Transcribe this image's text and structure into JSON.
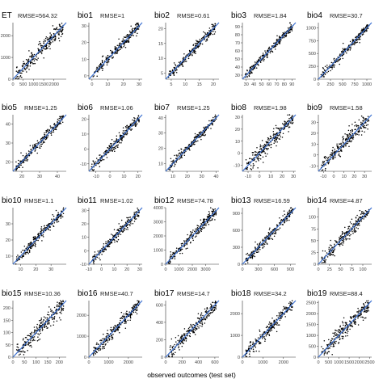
{
  "chart_data": {
    "type": "scatter",
    "xlabel": "observed outcomes (test set)",
    "ylabel": "",
    "grid": false,
    "panels": [
      {
        "name": "ET",
        "rmse": "RMSE=564.32",
        "xlim": [
          0,
          2600
        ],
        "ylim": [
          0,
          2600
        ],
        "xticks": [
          "0",
          "500",
          "1000",
          "1500",
          "2000"
        ],
        "yticks": [
          "0",
          "1000",
          "2000"
        ],
        "xtick_vals": [
          0,
          500,
          1000,
          1500,
          2000
        ],
        "ytick_vals": [
          0,
          1000,
          2000
        ],
        "spread": 0.07
      },
      {
        "name": "bio1",
        "rmse": "RMSE=1",
        "xlim": [
          -2,
          32
        ],
        "ylim": [
          -2,
          32
        ],
        "xticks": [
          "0",
          "10",
          "20",
          "30"
        ],
        "yticks": [
          "0",
          "10",
          "20",
          "30"
        ],
        "xtick_vals": [
          0,
          10,
          20,
          30
        ],
        "ytick_vals": [
          0,
          10,
          20,
          30
        ],
        "spread": 0.05
      },
      {
        "name": "bio2",
        "rmse": "RMSE=0.61",
        "xlim": [
          3,
          22
        ],
        "ylim": [
          3,
          22
        ],
        "xticks": [
          "5",
          "10",
          "15",
          "20"
        ],
        "yticks": [
          "5",
          "10",
          "15",
          "20"
        ],
        "xtick_vals": [
          5,
          10,
          15,
          20
        ],
        "ytick_vals": [
          5,
          10,
          15,
          20
        ],
        "spread": 0.05
      },
      {
        "name": "bio3",
        "rmse": "RMSE=1.84",
        "xlim": [
          25,
          95
        ],
        "ylim": [
          25,
          95
        ],
        "xticks": [
          "30",
          "40",
          "50",
          "60",
          "70",
          "80",
          "90"
        ],
        "yticks": [
          "30",
          "40",
          "50",
          "60",
          "70",
          "80",
          "90"
        ],
        "xtick_vals": [
          30,
          40,
          50,
          60,
          70,
          80,
          90
        ],
        "ytick_vals": [
          30,
          40,
          50,
          60,
          70,
          80,
          90
        ],
        "spread": 0.04
      },
      {
        "name": "bio4",
        "rmse": "RMSE=30.7",
        "xlim": [
          0,
          1100
        ],
        "ylim": [
          0,
          1100
        ],
        "xticks": [
          "0",
          "250",
          "500",
          "750",
          "1000"
        ],
        "yticks": [
          "0",
          "250",
          "500",
          "750",
          "1000"
        ],
        "xtick_vals": [
          0,
          250,
          500,
          750,
          1000
        ],
        "ytick_vals": [
          0,
          250,
          500,
          750,
          1000
        ],
        "spread": 0.04
      },
      {
        "name": "bio5",
        "rmse": "RMSE=1.25",
        "xlim": [
          15,
          45
        ],
        "ylim": [
          15,
          45
        ],
        "xticks": [
          "20",
          "30",
          "40"
        ],
        "yticks": [
          "20",
          "30",
          "40"
        ],
        "xtick_vals": [
          20,
          30,
          40
        ],
        "ytick_vals": [
          20,
          30,
          40
        ],
        "spread": 0.05
      },
      {
        "name": "bio6",
        "rmse": "RMSE=1.06",
        "xlim": [
          -15,
          23
        ],
        "ylim": [
          -15,
          23
        ],
        "xticks": [
          "-10",
          "0",
          "10",
          "20"
        ],
        "yticks": [
          "-10",
          "0",
          "10",
          "20"
        ],
        "xtick_vals": [
          -10,
          0,
          10,
          20
        ],
        "ytick_vals": [
          -10,
          0,
          10,
          20
        ],
        "spread": 0.05
      },
      {
        "name": "bio7",
        "rmse": "RMSE=1.25",
        "xlim": [
          5,
          42
        ],
        "ylim": [
          5,
          42
        ],
        "xticks": [
          "10",
          "20",
          "30",
          "40"
        ],
        "yticks": [
          "10",
          "20",
          "30",
          "40"
        ],
        "xtick_vals": [
          10,
          20,
          30,
          40
        ],
        "ytick_vals": [
          10,
          20,
          30,
          40
        ],
        "spread": 0.04
      },
      {
        "name": "bio8",
        "rmse": "RMSE=1.98",
        "xlim": [
          -15,
          32
        ],
        "ylim": [
          -15,
          32
        ],
        "xticks": [
          "-10",
          "0",
          "10",
          "20",
          "30"
        ],
        "yticks": [
          "-10",
          "0",
          "10",
          "20",
          "30"
        ],
        "xtick_vals": [
          -10,
          0,
          10,
          20,
          30
        ],
        "ytick_vals": [
          -10,
          0,
          10,
          20,
          30
        ],
        "spread": 0.07
      },
      {
        "name": "bio9",
        "rmse": "RMSE=1.58",
        "xlim": [
          -15,
          37
        ],
        "ylim": [
          -15,
          37
        ],
        "xticks": [
          "-10",
          "0",
          "10",
          "20",
          "30"
        ],
        "yticks": [
          "-10",
          "0",
          "10",
          "20",
          "30"
        ],
        "xtick_vals": [
          -10,
          0,
          10,
          20,
          30
        ],
        "ytick_vals": [
          -10,
          0,
          10,
          20,
          30
        ],
        "spread": 0.08
      },
      {
        "name": "bio10",
        "rmse": "RMSE=1.1",
        "xlim": [
          5,
          40
        ],
        "ylim": [
          5,
          40
        ],
        "xticks": [
          "10",
          "20",
          "30"
        ],
        "yticks": [
          "10",
          "20",
          "30"
        ],
        "xtick_vals": [
          10,
          20,
          30
        ],
        "ytick_vals": [
          10,
          20,
          30
        ],
        "spread": 0.05
      },
      {
        "name": "bio11",
        "rmse": "RMSE=1.02",
        "xlim": [
          -10,
          32
        ],
        "ylim": [
          -10,
          32
        ],
        "xticks": [
          "-10",
          "0",
          "10",
          "20",
          "30"
        ],
        "yticks": [
          "-10",
          "0",
          "10",
          "20",
          "30"
        ],
        "xtick_vals": [
          -10,
          0,
          10,
          20,
          30
        ],
        "ytick_vals": [
          -10,
          0,
          10,
          20,
          30
        ],
        "spread": 0.05
      },
      {
        "name": "bio12",
        "rmse": "RMSE=74.78",
        "xlim": [
          0,
          4000
        ],
        "ylim": [
          0,
          4000
        ],
        "xticks": [
          "0",
          "1000",
          "2000",
          "3000"
        ],
        "yticks": [
          "0",
          "1000",
          "2000",
          "3000",
          "4000"
        ],
        "xtick_vals": [
          0,
          1000,
          2000,
          3000
        ],
        "ytick_vals": [
          0,
          1000,
          2000,
          3000,
          4000
        ],
        "spread": 0.05
      },
      {
        "name": "bio13",
        "rmse": "RMSE=16.59",
        "xlim": [
          0,
          1000
        ],
        "ylim": [
          0,
          1000
        ],
        "xticks": [
          "0",
          "300",
          "600",
          "900"
        ],
        "yticks": [
          "0",
          "300",
          "600",
          "900"
        ],
        "xtick_vals": [
          0,
          300,
          600,
          900
        ],
        "ytick_vals": [
          0,
          300,
          600,
          900
        ],
        "spread": 0.05
      },
      {
        "name": "bio14",
        "rmse": "RMSE=4.87",
        "xlim": [
          0,
          120
        ],
        "ylim": [
          0,
          120
        ],
        "xticks": [
          "0",
          "25",
          "50",
          "75",
          "100"
        ],
        "yticks": [
          "0",
          "25",
          "50",
          "75",
          "100"
        ],
        "xtick_vals": [
          0,
          25,
          50,
          75,
          100
        ],
        "ytick_vals": [
          0,
          25,
          50,
          75,
          100
        ],
        "spread": 0.06
      },
      {
        "name": "bio15",
        "rmse": "RMSE=10.36",
        "xlim": [
          0,
          230
        ],
        "ylim": [
          0,
          230
        ],
        "xticks": [
          "0",
          "50",
          "100",
          "150",
          "200"
        ],
        "yticks": [
          "0",
          "50",
          "100",
          "150",
          "200"
        ],
        "xtick_vals": [
          0,
          50,
          100,
          150,
          200
        ],
        "ytick_vals": [
          0,
          50,
          100,
          150,
          200
        ],
        "spread": 0.08
      },
      {
        "name": "bio16",
        "rmse": "RMSE=40.7",
        "xlim": [
          0,
          2700
        ],
        "ylim": [
          0,
          2700
        ],
        "xticks": [
          "0",
          "1000",
          "2000"
        ],
        "yticks": [
          "0",
          "1000",
          "2000"
        ],
        "xtick_vals": [
          0,
          1000,
          2000
        ],
        "ytick_vals": [
          0,
          1000,
          2000
        ],
        "spread": 0.06
      },
      {
        "name": "bio17",
        "rmse": "RMSE=14.7",
        "xlim": [
          0,
          650
        ],
        "ylim": [
          0,
          650
        ],
        "xticks": [
          "0",
          "200",
          "400",
          "600"
        ],
        "yticks": [
          "0",
          "200",
          "400",
          "600"
        ],
        "xtick_vals": [
          0,
          200,
          400,
          600
        ],
        "ytick_vals": [
          0,
          200,
          400,
          600
        ],
        "spread": 0.07
      },
      {
        "name": "bio18",
        "rmse": "RMSE=34.2",
        "xlim": [
          0,
          2600
        ],
        "ylim": [
          0,
          2600
        ],
        "xticks": [
          "0",
          "1000",
          "2000"
        ],
        "yticks": [
          "0",
          "1000",
          "2000"
        ],
        "xtick_vals": [
          0,
          1000,
          2000
        ],
        "ytick_vals": [
          0,
          1000,
          2000
        ],
        "spread": 0.06
      },
      {
        "name": "bio19",
        "rmse": "RMSE=88.4",
        "xlim": [
          0,
          2600
        ],
        "ylim": [
          0,
          2600
        ],
        "xticks": [
          "0",
          "500",
          "1000",
          "1500",
          "2000",
          "2500"
        ],
        "yticks": [
          "0",
          "500",
          "1000",
          "1500",
          "2000",
          "2500"
        ],
        "xtick_vals": [
          0,
          500,
          1000,
          1500,
          2000,
          2500
        ],
        "ytick_vals": [
          0,
          500,
          1000,
          1500,
          2000,
          2500
        ],
        "spread": 0.08
      }
    ]
  },
  "colors": {
    "points": "#000000",
    "fit_line": "#3a6fd0",
    "axis": "#333333"
  }
}
